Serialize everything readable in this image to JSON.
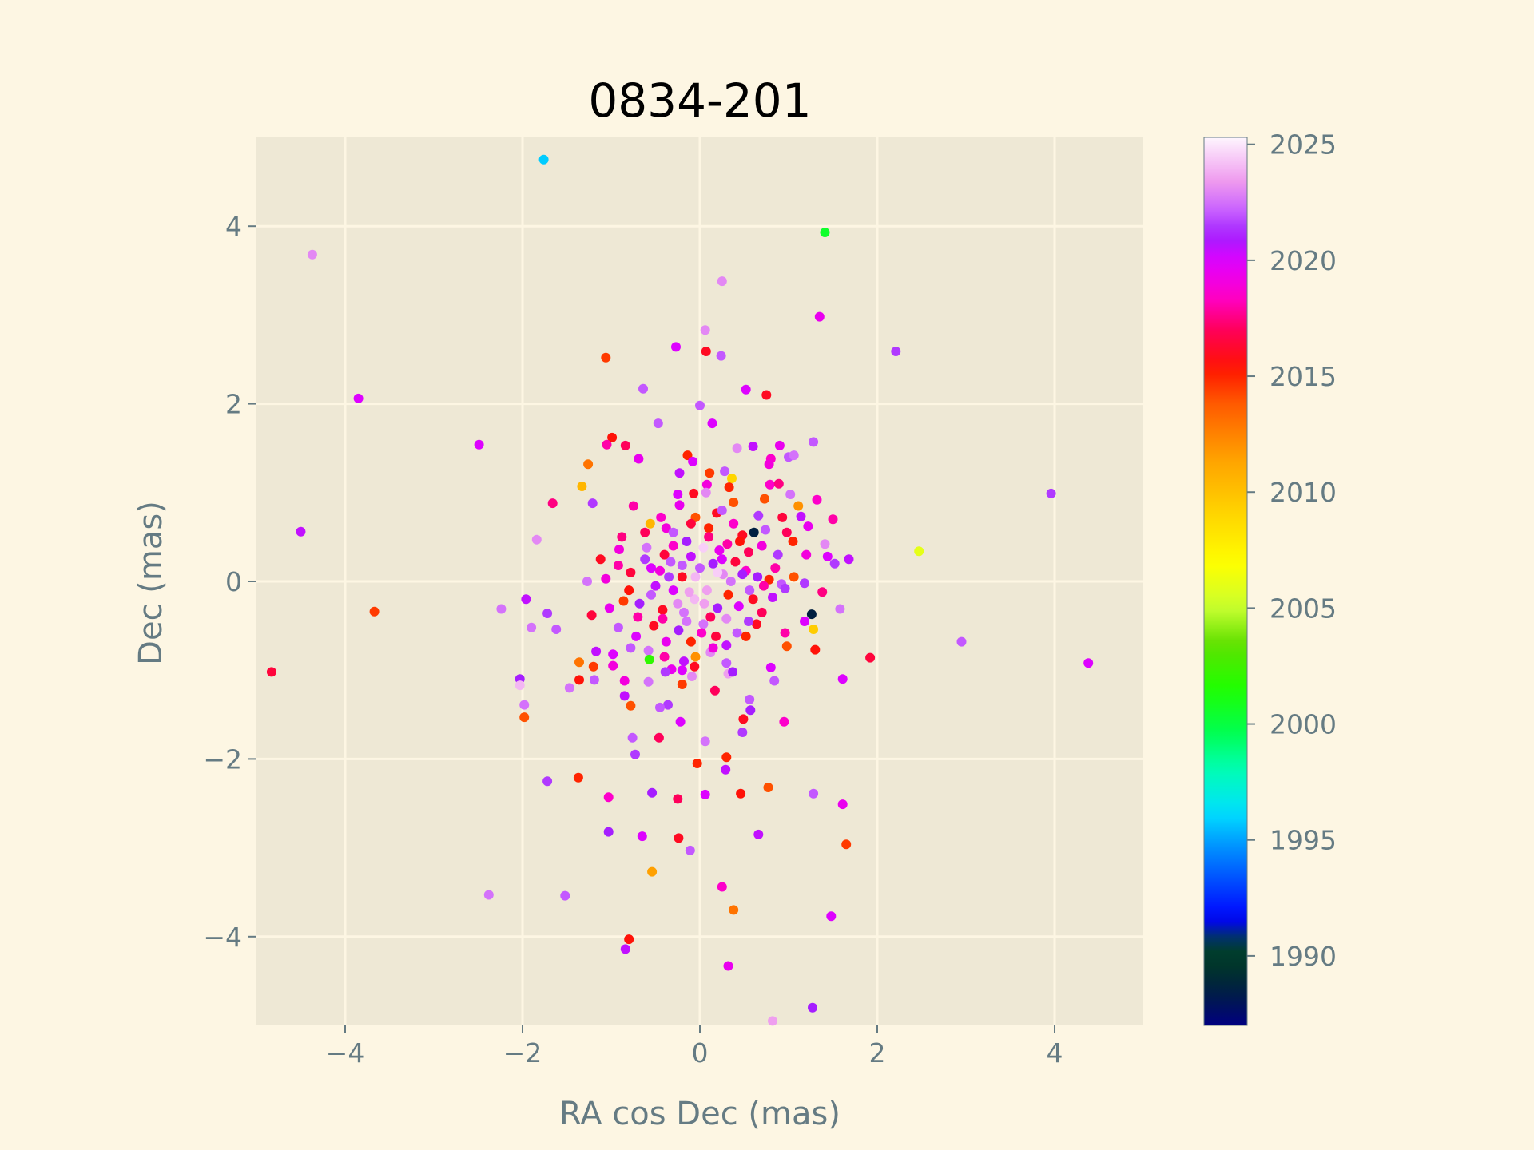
{
  "chart_data": {
    "type": "scatter",
    "title": "0834-201",
    "xlabel": "RA cos Dec (mas)",
    "ylabel": "Dec (mas)",
    "xlim": [
      -5,
      5
    ],
    "ylim": [
      -5,
      5
    ],
    "x_ticks": [
      -4,
      -2,
      0,
      2,
      4
    ],
    "y_ticks": [
      -4,
      -2,
      0,
      2,
      4
    ],
    "x_tick_labels": [
      "−4",
      "−2",
      "0",
      "2",
      "4"
    ],
    "y_tick_labels": [
      "−4",
      "−2",
      "0",
      "2",
      "4"
    ],
    "grid": true,
    "colorbar": {
      "range": [
        1987,
        2025.3
      ],
      "ticks": [
        1990,
        1995,
        2000,
        2005,
        2010,
        2015,
        2020,
        2025
      ],
      "tick_labels": [
        "1990",
        "1995",
        "2000",
        "2005",
        "2010",
        "2015",
        "2020",
        "2025"
      ],
      "colormap": "gist_ncar"
    },
    "colors": {
      "background": "#fdf6e3",
      "plot_area": "#eee8d5",
      "grid": "#fdf6e3",
      "text": "#657b83"
    },
    "points": [
      [
        -1.76,
        4.75,
        1995.8
      ],
      [
        1.41,
        3.93,
        2000.5
      ],
      [
        -4.37,
        3.68,
        2023.0
      ],
      [
        0.25,
        3.38,
        2023.0
      ],
      [
        1.35,
        2.98,
        2019.5
      ],
      [
        0.06,
        2.83,
        2023.0
      ],
      [
        -0.27,
        2.64,
        2020.0
      ],
      [
        0.07,
        2.59,
        2016.0
      ],
      [
        0.24,
        2.54,
        2022.0
      ],
      [
        2.21,
        2.59,
        2021.5
      ],
      [
        -1.06,
        2.52,
        2014.5
      ],
      [
        -3.85,
        2.06,
        2020.0
      ],
      [
        -0.64,
        2.17,
        2022.0
      ],
      [
        0.52,
        2.16,
        2020.0
      ],
      [
        0.75,
        2.1,
        2016.0
      ],
      [
        0.0,
        1.98,
        2022.0
      ],
      [
        -0.47,
        1.78,
        2022.0
      ],
      [
        0.14,
        1.78,
        2020.0
      ],
      [
        -0.99,
        1.62,
        2015.5
      ],
      [
        -2.49,
        1.54,
        2020.0
      ],
      [
        -1.05,
        1.54,
        2018.0
      ],
      [
        -0.84,
        1.53,
        2017.0
      ],
      [
        0.42,
        1.5,
        2023.0
      ],
      [
        0.6,
        1.52,
        2020.5
      ],
      [
        0.9,
        1.53,
        2019.5
      ],
      [
        1.28,
        1.57,
        2022.0
      ],
      [
        -0.14,
        1.42,
        2015.0
      ],
      [
        -0.69,
        1.38,
        2019.5
      ],
      [
        0.8,
        1.38,
        2018.5
      ],
      [
        1.0,
        1.4,
        2022.0
      ],
      [
        1.06,
        1.42,
        2022.5
      ],
      [
        -1.26,
        1.32,
        2013.0
      ],
      [
        -0.08,
        1.35,
        2020.0
      ],
      [
        0.78,
        1.32,
        2019.0
      ],
      [
        0.11,
        1.22,
        2014.5
      ],
      [
        0.28,
        1.24,
        2022.0
      ],
      [
        -0.23,
        1.22,
        2020.5
      ],
      [
        -1.33,
        1.07,
        2010.5
      ],
      [
        0.08,
        1.09,
        2019.0
      ],
      [
        0.36,
        1.16,
        2009.0
      ],
      [
        0.33,
        1.06,
        2015.0
      ],
      [
        0.79,
        1.09,
        2018.5
      ],
      [
        0.89,
        1.1,
        2017.5
      ],
      [
        1.02,
        0.98,
        2022.5
      ],
      [
        -0.25,
        0.98,
        2020.0
      ],
      [
        -0.07,
        0.99,
        2016.0
      ],
      [
        0.07,
        1.0,
        2023.0
      ],
      [
        -1.66,
        0.88,
        2017.5
      ],
      [
        -1.21,
        0.88,
        2021.5
      ],
      [
        -0.75,
        0.85,
        2018.0
      ],
      [
        0.38,
        0.89,
        2014.0
      ],
      [
        0.73,
        0.93,
        2014.0
      ],
      [
        1.11,
        0.85,
        2012.0
      ],
      [
        1.32,
        0.92,
        2018.5
      ],
      [
        -0.23,
        0.86,
        2019.5
      ],
      [
        0.19,
        0.77,
        2016.0
      ],
      [
        -0.56,
        0.65,
        2010.5
      ],
      [
        0.66,
        0.74,
        2021.5
      ],
      [
        0.93,
        0.72,
        2016.5
      ],
      [
        1.14,
        0.73,
        2020.5
      ],
      [
        1.5,
        0.7,
        2018.0
      ],
      [
        -0.44,
        0.72,
        2018.5
      ],
      [
        -0.05,
        0.72,
        2014.0
      ],
      [
        0.25,
        0.8,
        2022.0
      ],
      [
        0.61,
        0.55,
        1988.5
      ],
      [
        0.48,
        0.52,
        2016.0
      ],
      [
        0.74,
        0.58,
        2022.0
      ],
      [
        -0.38,
        0.6,
        2019.0
      ],
      [
        0.1,
        0.6,
        2015.0
      ],
      [
        -1.84,
        0.47,
        2023.0
      ],
      [
        -4.5,
        0.56,
        2020.5
      ],
      [
        1.05,
        0.45,
        2015.0
      ],
      [
        1.41,
        0.42,
        2023.0
      ],
      [
        -0.91,
        0.36,
        2019.0
      ],
      [
        -0.6,
        0.38,
        2022.5
      ],
      [
        -0.3,
        0.4,
        2018.5
      ],
      [
        0.04,
        0.38,
        2024.5
      ],
      [
        0.31,
        0.42,
        2018.0
      ],
      [
        0.55,
        0.33,
        2017.0
      ],
      [
        0.88,
        0.3,
        2021.5
      ],
      [
        1.2,
        0.3,
        2019.0
      ],
      [
        1.44,
        0.28,
        2020.0
      ],
      [
        1.68,
        0.25,
        2020.5
      ],
      [
        1.52,
        0.2,
        2021.5
      ],
      [
        2.47,
        0.34,
        2006.0
      ],
      [
        -1.27,
        0.0,
        2022.5
      ],
      [
        -1.06,
        0.03,
        2019.0
      ],
      [
        -0.92,
        0.18,
        2018.0
      ],
      [
        -0.78,
        0.1,
        2016.5
      ],
      [
        -0.62,
        0.25,
        2021.5
      ],
      [
        -0.45,
        0.12,
        2019.0
      ],
      [
        -0.33,
        0.22,
        2022.0
      ],
      [
        -0.2,
        0.05,
        2016.0
      ],
      [
        -0.1,
        0.28,
        2020.5
      ],
      [
        0.0,
        0.15,
        2022.0
      ],
      [
        0.15,
        0.2,
        2021.0
      ],
      [
        0.26,
        0.08,
        2023.0
      ],
      [
        0.4,
        0.22,
        2016.5
      ],
      [
        0.52,
        0.12,
        2018.5
      ],
      [
        0.65,
        0.05,
        2021.0
      ],
      [
        0.78,
        0.02,
        2015.0
      ],
      [
        0.92,
        -0.03,
        2022.0
      ],
      [
        1.06,
        0.05,
        2014.0
      ],
      [
        1.18,
        -0.02,
        2021.5
      ],
      [
        -1.96,
        -0.2,
        2020.5
      ],
      [
        -1.72,
        -0.36,
        2021.5
      ],
      [
        -2.24,
        -0.31,
        2022.5
      ],
      [
        -1.22,
        -0.38,
        2016.5
      ],
      [
        -1.02,
        -0.3,
        2019.5
      ],
      [
        -0.86,
        -0.22,
        2014.5
      ],
      [
        -0.7,
        -0.4,
        2018.0
      ],
      [
        -0.55,
        -0.15,
        2022.0
      ],
      [
        -0.42,
        -0.32,
        2016.0
      ],
      [
        -0.3,
        -0.1,
        2020.0
      ],
      [
        -0.18,
        -0.35,
        2022.5
      ],
      [
        -0.06,
        -0.2,
        2024.0
      ],
      [
        0.08,
        -0.1,
        2023.5
      ],
      [
        0.2,
        -0.3,
        2021.0
      ],
      [
        0.32,
        -0.15,
        2015.0
      ],
      [
        0.44,
        -0.28,
        2020.0
      ],
      [
        0.56,
        -0.1,
        2022.0
      ],
      [
        0.7,
        -0.35,
        2017.0
      ],
      [
        0.82,
        -0.18,
        2020.5
      ],
      [
        0.96,
        -0.08,
        2021.5
      ],
      [
        1.38,
        -0.12,
        2017.5
      ],
      [
        1.58,
        -0.31,
        2022.5
      ],
      [
        1.26,
        -0.37,
        1988.5
      ],
      [
        1.18,
        -0.45,
        2020.0
      ],
      [
        -3.67,
        -0.34,
        2014.5
      ],
      [
        -4.83,
        -1.02,
        2016.5
      ],
      [
        4.38,
        -0.92,
        2020.0
      ],
      [
        2.95,
        -0.68,
        2022.0
      ],
      [
        3.96,
        0.99,
        2021.5
      ],
      [
        -1.62,
        -0.54,
        2022.0
      ],
      [
        -1.9,
        -0.52,
        2022.5
      ],
      [
        -0.92,
        -0.52,
        2022.0
      ],
      [
        -0.72,
        -0.62,
        2020.0
      ],
      [
        -0.52,
        -0.5,
        2016.0
      ],
      [
        -0.38,
        -0.68,
        2019.5
      ],
      [
        -0.24,
        -0.55,
        2021.0
      ],
      [
        -0.1,
        -0.68,
        2015.0
      ],
      [
        0.04,
        -0.48,
        2022.5
      ],
      [
        0.18,
        -0.62,
        2016.5
      ],
      [
        0.3,
        -0.72,
        2020.5
      ],
      [
        0.42,
        -0.58,
        2022.0
      ],
      [
        0.52,
        -0.62,
        2015.0
      ],
      [
        0.64,
        -0.48,
        2016.0
      ],
      [
        0.96,
        -0.58,
        2018.0
      ],
      [
        1.28,
        -0.54,
        2009.5
      ],
      [
        1.3,
        -0.77,
        2015.5
      ],
      [
        0.98,
        -0.73,
        2014.0
      ],
      [
        -1.17,
        -0.79,
        2020.5
      ],
      [
        -0.98,
        -0.82,
        2020.0
      ],
      [
        -0.78,
        -0.75,
        2022.0
      ],
      [
        -0.58,
        -0.78,
        2022.5
      ],
      [
        -0.4,
        -0.85,
        2018.0
      ],
      [
        -0.18,
        -0.9,
        2020.5
      ],
      [
        -0.05,
        -0.85,
        2012.0
      ],
      [
        0.12,
        -0.8,
        2023.0
      ],
      [
        0.3,
        -0.92,
        2022.0
      ],
      [
        -0.57,
        -0.88,
        2002.0
      ],
      [
        -1.36,
        -0.91,
        2013.0
      ],
      [
        -1.2,
        -0.96,
        2014.5
      ],
      [
        -0.98,
        -0.95,
        2019.0
      ],
      [
        -0.32,
        -0.99,
        2019.5
      ],
      [
        -0.2,
        -1.0,
        2020.0
      ],
      [
        -0.06,
        -0.96,
        2016.0
      ],
      [
        0.8,
        -0.97,
        2020.0
      ],
      [
        1.92,
        -0.86,
        2016.5
      ],
      [
        -1.19,
        -1.11,
        2022.0
      ],
      [
        -1.36,
        -1.11,
        2015.5
      ],
      [
        -0.85,
        -1.12,
        2019.0
      ],
      [
        -0.58,
        -1.13,
        2022.5
      ],
      [
        -0.39,
        -1.02,
        2021.5
      ],
      [
        -0.09,
        -1.07,
        2023.0
      ],
      [
        0.32,
        -1.04,
        2023.5
      ],
      [
        0.37,
        -1.02,
        2021.0
      ],
      [
        0.84,
        -1.12,
        2022.0
      ],
      [
        1.61,
        -1.1,
        2020.0
      ],
      [
        -2.03,
        -1.1,
        2021.0
      ],
      [
        -2.03,
        -1.17,
        2024.0
      ],
      [
        -1.47,
        -1.2,
        2022.5
      ],
      [
        -0.2,
        -1.16,
        2014.5
      ],
      [
        0.17,
        -1.23,
        2017.0
      ],
      [
        -0.85,
        -1.29,
        2020.5
      ],
      [
        0.56,
        -1.33,
        2022.0
      ],
      [
        -0.78,
        -1.4,
        2014.0
      ],
      [
        -0.36,
        -1.39,
        2021.5
      ],
      [
        -1.98,
        -1.39,
        2022.5
      ],
      [
        0.57,
        -1.45,
        2021.0
      ],
      [
        -0.45,
        -1.42,
        2022.0
      ],
      [
        0.49,
        -1.55,
        2016.0
      ],
      [
        -1.98,
        -1.53,
        2014.0
      ],
      [
        -0.22,
        -1.58,
        2020.0
      ],
      [
        0.48,
        -1.7,
        2021.5
      ],
      [
        0.95,
        -1.58,
        2018.5
      ],
      [
        -0.76,
        -1.76,
        2022.0
      ],
      [
        -0.46,
        -1.76,
        2017.0
      ],
      [
        0.06,
        -1.8,
        2022.5
      ],
      [
        -0.73,
        -1.95,
        2021.5
      ],
      [
        0.3,
        -1.98,
        2015.0
      ],
      [
        -0.03,
        -2.05,
        2015.0
      ],
      [
        0.29,
        -2.12,
        2020.5
      ],
      [
        -1.37,
        -2.21,
        2015.0
      ],
      [
        -1.72,
        -2.25,
        2021.5
      ],
      [
        0.46,
        -2.39,
        2015.5
      ],
      [
        0.77,
        -2.32,
        2014.0
      ],
      [
        0.06,
        -2.4,
        2020.0
      ],
      [
        -0.54,
        -2.38,
        2021.0
      ],
      [
        -1.03,
        -2.43,
        2018.5
      ],
      [
        -0.25,
        -2.45,
        2017.0
      ],
      [
        1.28,
        -2.39,
        2022.0
      ],
      [
        1.61,
        -2.51,
        2019.5
      ],
      [
        -1.03,
        -2.82,
        2021.0
      ],
      [
        -0.65,
        -2.87,
        2020.0
      ],
      [
        -0.24,
        -2.89,
        2016.0
      ],
      [
        0.66,
        -2.85,
        2020.5
      ],
      [
        -0.11,
        -3.03,
        2022.0
      ],
      [
        1.65,
        -2.96,
        2014.5
      ],
      [
        -0.54,
        -3.27,
        2011.5
      ],
      [
        -2.38,
        -3.53,
        2022.5
      ],
      [
        -1.52,
        -3.54,
        2022.0
      ],
      [
        0.25,
        -3.44,
        2018.5
      ],
      [
        0.38,
        -3.7,
        2013.0
      ],
      [
        1.48,
        -3.77,
        2020.0
      ],
      [
        -0.8,
        -4.03,
        2015.5
      ],
      [
        -0.84,
        -4.14,
        2020.5
      ],
      [
        0.32,
        -4.33,
        2019.5
      ],
      [
        1.27,
        -4.8,
        2021.0
      ],
      [
        0.82,
        -4.95,
        2023.5
      ],
      [
        0.1,
        0.5,
        2017.5
      ],
      [
        -0.15,
        0.45,
        2021.0
      ],
      [
        0.22,
        0.35,
        2019.5
      ],
      [
        -0.4,
        0.3,
        2016.5
      ],
      [
        0.35,
        0.0,
        2022.5
      ],
      [
        -0.25,
        -0.25,
        2023.0
      ],
      [
        0.12,
        -0.4,
        2017.0
      ],
      [
        -0.5,
        -0.05,
        2020.5
      ],
      [
        0.6,
        -0.2,
        2016.0
      ],
      [
        -0.05,
        0.05,
        2024.0
      ],
      [
        0.05,
        -0.25,
        2023.5
      ],
      [
        -0.15,
        -0.45,
        2022.5
      ],
      [
        0.25,
        0.25,
        2020.0
      ],
      [
        -0.35,
        0.05,
        2021.5
      ],
      [
        0.45,
        0.45,
        2015.5
      ],
      [
        -0.62,
        0.55,
        2017.0
      ],
      [
        0.7,
        0.4,
        2019.0
      ],
      [
        -0.8,
        -0.1,
        2015.5
      ],
      [
        0.85,
        0.15,
        2018.0
      ],
      [
        -0.1,
        0.65,
        2016.5
      ],
      [
        0.15,
        -0.75,
        2019.0
      ],
      [
        -0.3,
        0.55,
        2022.0
      ],
      [
        0.55,
        -0.45,
        2021.5
      ],
      [
        0.38,
        0.65,
        2018.5
      ],
      [
        -0.68,
        -0.25,
        2021.0
      ],
      [
        0.2,
        0.1,
        2024.5
      ],
      [
        -0.2,
        0.18,
        2022.0
      ],
      [
        0.72,
        -0.05,
        2018.0
      ],
      [
        -0.55,
        0.15,
        2020.0
      ],
      [
        0.02,
        -0.58,
        2018.5
      ],
      [
        -0.12,
        -0.12,
        2023.5
      ],
      [
        0.3,
        -0.42,
        2023.0
      ],
      [
        -0.42,
        -0.42,
        2018.0
      ],
      [
        0.48,
        0.08,
        2021.0
      ],
      [
        -0.88,
        0.5,
        2017.5
      ],
      [
        1.22,
        0.62,
        2019.5
      ],
      [
        -1.12,
        0.25,
        2016.0
      ],
      [
        0.98,
        0.55,
        2017.0
      ]
    ]
  }
}
